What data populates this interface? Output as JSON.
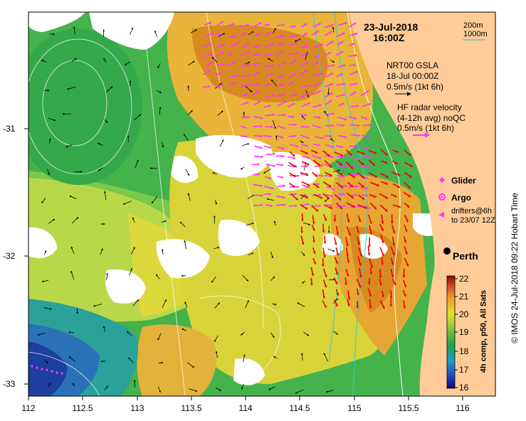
{
  "header": {
    "date": "23-Jul-2018",
    "time": "16:00Z"
  },
  "isobath_legend": {
    "items": [
      {
        "label": "200m",
        "color": "#ffffff"
      },
      {
        "label": "1000m",
        "color": "#33cccc"
      }
    ]
  },
  "gsla_legend": {
    "title": "NRT00 GSLA",
    "date": "18-Jul 00:00Z",
    "scale": "0.5m/s (1kt 6h)",
    "arrow_color": "#000000"
  },
  "hf_legend": {
    "line1": "HF radar velocity",
    "line2": "(4-12h avg) noQC",
    "scale": "0.5m/s (1kt 6h)",
    "arrow_color": "#ff33ff"
  },
  "markers": {
    "glider": "Glider",
    "argo": "Argo",
    "drifters_line1": "drifters@6h",
    "drifters_line2": "to 23/07 12Z",
    "color": "#ff33ff"
  },
  "place": {
    "name": "Perth"
  },
  "colorbar": {
    "label": "4h comp, p50, All Sats",
    "ticks": [
      "22",
      "21",
      "20",
      "19",
      "18",
      "17",
      "16"
    ],
    "min": 16,
    "max": 22
  },
  "axes": {
    "x_ticks": [
      "112",
      "112.5",
      "113",
      "113.5",
      "114",
      "114.5",
      "115",
      "115.5",
      "116"
    ],
    "y_ticks": [
      "-31",
      "-32",
      "-33"
    ],
    "lon_range": [
      112,
      116.3
    ],
    "lat_range": [
      -33.1,
      -30.1
    ]
  },
  "credit": "© IMOS 24-Jul-2018 09:22 Hobart Time",
  "colors": {
    "land": "#ffcc99",
    "cloud": "#ffffff",
    "hf_arrow": "#ff33ff",
    "radar_arrow": "#ee0000",
    "frame": "#000000"
  }
}
